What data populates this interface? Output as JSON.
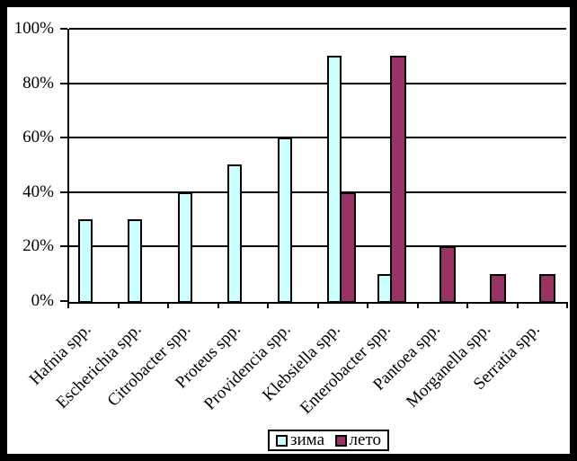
{
  "chart_data": {
    "type": "bar",
    "title": "",
    "xlabel": "",
    "ylabel": "",
    "categories": [
      "Hafnia spp.",
      "Escherichia spp.",
      "Citrobacter spp.",
      "Proteus spp.",
      "Providencia spp.",
      "Klebsiella spp.",
      "Enterobacter spp.",
      "Pantoea spp.",
      "Morganella spp.",
      "Serratia spp."
    ],
    "series": [
      {
        "name": "зима",
        "color": "#CCFFFF",
        "values": [
          30,
          30,
          40,
          50,
          60,
          90,
          10,
          0,
          0,
          0
        ]
      },
      {
        "name": "лето",
        "color": "#993366",
        "values": [
          0,
          0,
          0,
          0,
          0,
          40,
          90,
          20,
          10,
          10
        ]
      }
    ],
    "y_tick_labels": [
      "0%",
      "20%",
      "40%",
      "60%",
      "80%",
      "100%"
    ],
    "y_tick_values": [
      0,
      20,
      40,
      60,
      80,
      100
    ],
    "ylim": [
      0,
      100
    ],
    "grid": true,
    "gridline_color": "#000000",
    "bar_border_color": "#000000",
    "background_color": "#FFFFFF",
    "outer_border_color": "#000000",
    "legend_position": "bottom"
  }
}
